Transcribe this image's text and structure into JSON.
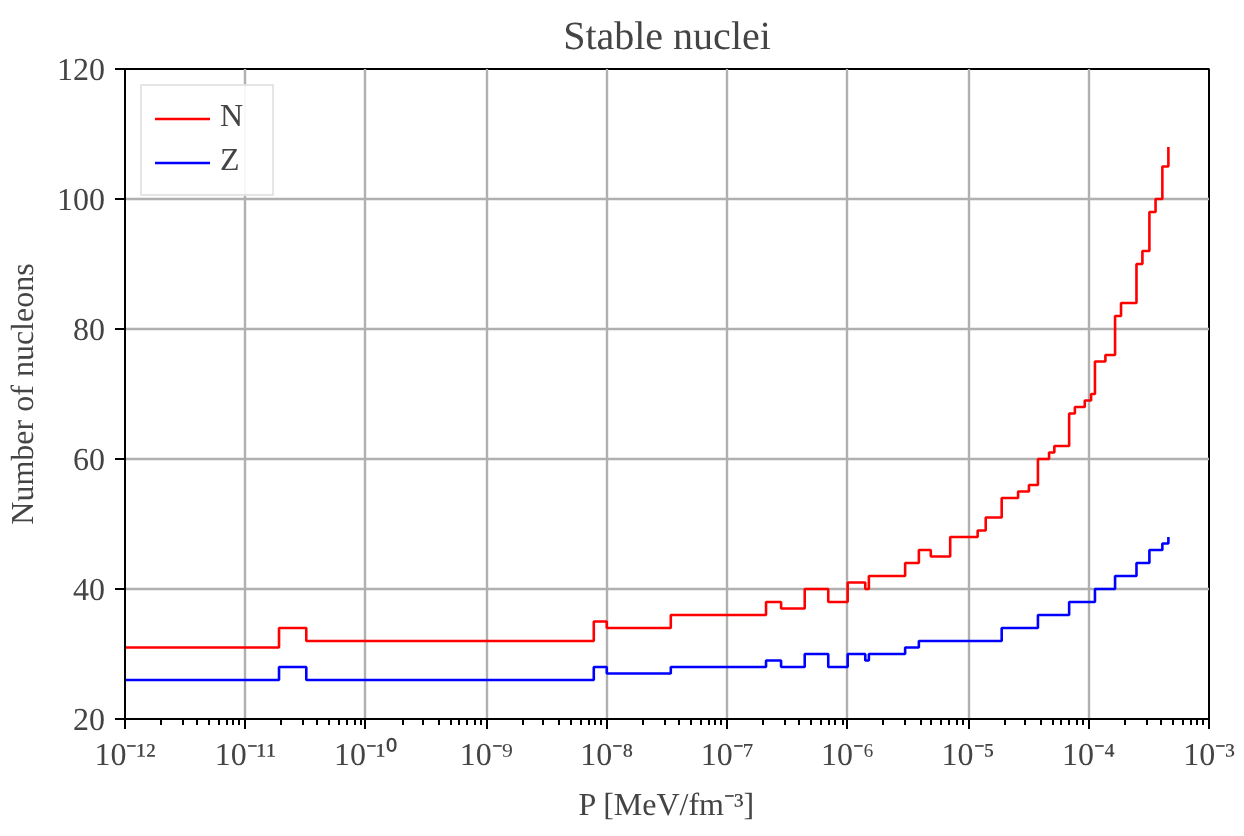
{
  "chart_data": {
    "type": "step",
    "title": "Stable nuclei",
    "xlabel": "P [MeV/fm⁻³]",
    "ylabel": "Number of nucleons",
    "log": "x",
    "grid": true,
    "legend": "top left",
    "xlim": [
      1e-12,
      0.001
    ],
    "ylim": [
      20,
      120
    ],
    "xticks": [
      {
        "value": 1e-12,
        "label": "10⁻¹²"
      },
      {
        "value": 1e-11,
        "label": "10⁻¹¹"
      },
      {
        "value": 1e-10,
        "label": "10⁻¹⁰"
      },
      {
        "value": 1e-09,
        "label": "10⁻⁹"
      },
      {
        "value": 1e-08,
        "label": "10⁻⁸"
      },
      {
        "value": 1e-07,
        "label": "10⁻⁷"
      },
      {
        "value": 1e-06,
        "label": "10⁻⁶"
      },
      {
        "value": 1e-05,
        "label": "10⁻⁵"
      },
      {
        "value": 0.0001,
        "label": "10⁻⁴"
      },
      {
        "value": 0.001,
        "label": "10⁻³"
      }
    ],
    "yticks": [
      20,
      40,
      60,
      80,
      100,
      120
    ],
    "series": [
      {
        "name": "N",
        "color": "#ff0000",
        "x": [
          1e-12,
          1.9e-11,
          3.2e-11,
          7.8e-09,
          1e-08,
          3.4e-08,
          2.1e-07,
          2.8e-07,
          4.4e-07,
          6.9e-07,
          1e-06,
          1.4e-06,
          1.5e-06,
          3e-06,
          3.9e-06,
          4.9e-06,
          7.1e-06,
          1.2e-05,
          1.4e-05,
          1.9e-05,
          2.6e-05,
          3.2e-05,
          3.8e-05,
          4.7e-05,
          5.2e-05,
          6.9e-05,
          7.7e-05,
          9.3e-05,
          0.000105,
          0.000113,
          0.000138,
          0.000166,
          0.000186,
          0.00025,
          0.00028,
          0.00032,
          0.00036,
          0.00041,
          0.00046
        ],
        "values": [
          31,
          34,
          32,
          35,
          34,
          36,
          38,
          37,
          40,
          38,
          41,
          40,
          42,
          44,
          46,
          45,
          48,
          49,
          51,
          54,
          55,
          56,
          60,
          61,
          62,
          67,
          68,
          69,
          70,
          75,
          76,
          82,
          84,
          90,
          92,
          98,
          100,
          105,
          108
        ]
      },
      {
        "name": "Z",
        "color": "#0000ff",
        "x": [
          1e-12,
          1.9e-11,
          3.2e-11,
          7.8e-09,
          1e-08,
          3.4e-08,
          2.1e-07,
          2.8e-07,
          4.4e-07,
          6.9e-07,
          1e-06,
          1.4e-06,
          1.5e-06,
          3e-06,
          3.9e-06,
          1.9e-05,
          3.8e-05,
          6.9e-05,
          0.000113,
          0.000166,
          0.00025,
          0.00032,
          0.00041,
          0.00046
        ],
        "values": [
          26,
          28,
          26,
          28,
          27,
          28,
          29,
          28,
          30,
          28,
          30,
          29,
          30,
          31,
          32,
          34,
          36,
          38,
          40,
          42,
          44,
          46,
          47,
          48
        ]
      }
    ]
  }
}
